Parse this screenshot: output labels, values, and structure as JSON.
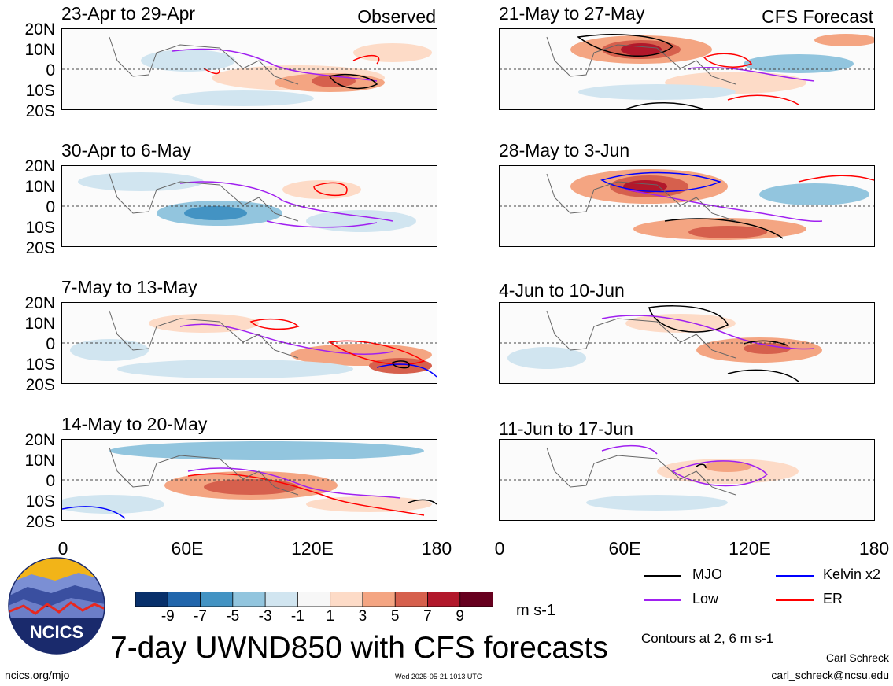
{
  "main_title": "7-day UWND850 with CFS forecasts",
  "observed_tag": "Observed",
  "forecast_tag": "CFS Forecast",
  "y_ticks": [
    "20N",
    "10N",
    "0",
    "10S",
    "20S"
  ],
  "x_ticks": [
    "0",
    "60E",
    "120E",
    "180"
  ],
  "panels_left": [
    {
      "title": "23-Apr to 29-Apr"
    },
    {
      "title": "30-Apr to 6-May"
    },
    {
      "title": "7-May to 13-May"
    },
    {
      "title": "14-May to 20-May"
    }
  ],
  "panels_right": [
    {
      "title": "21-May to 27-May"
    },
    {
      "title": "28-May to 3-Jun"
    },
    {
      "title": "4-Jun to 10-Jun"
    },
    {
      "title": "11-Jun to 17-Jun"
    }
  ],
  "colorbar": {
    "labels": [
      "-9",
      "-7",
      "-5",
      "-3",
      "-1",
      "1",
      "3",
      "5",
      "7",
      "9"
    ],
    "colors": [
      "#08306b",
      "#2166ac",
      "#4393c3",
      "#92c5de",
      "#d1e5f0",
      "#f7f7f7",
      "#fddbc7",
      "#f4a582",
      "#d6604d",
      "#b2182b",
      "#67001f"
    ],
    "units": "m s-1"
  },
  "legend": {
    "items": [
      {
        "label": "MJO",
        "color": "#000000"
      },
      {
        "label": "Kelvin x2",
        "color": "#0000ff"
      },
      {
        "label": "Low",
        "color": "#a020f0"
      },
      {
        "label": "ER",
        "color": "#ff0000"
      }
    ],
    "contours_note": "Contours at 2, 6 m s-1"
  },
  "logo_text": "NCICS",
  "footer": {
    "url": "ncics.org/mjo",
    "timestamp": "Wed 2025-05-21 1013 UTC",
    "author": "Carl Schreck",
    "email": "carl_schreck@ncsu.edu"
  }
}
